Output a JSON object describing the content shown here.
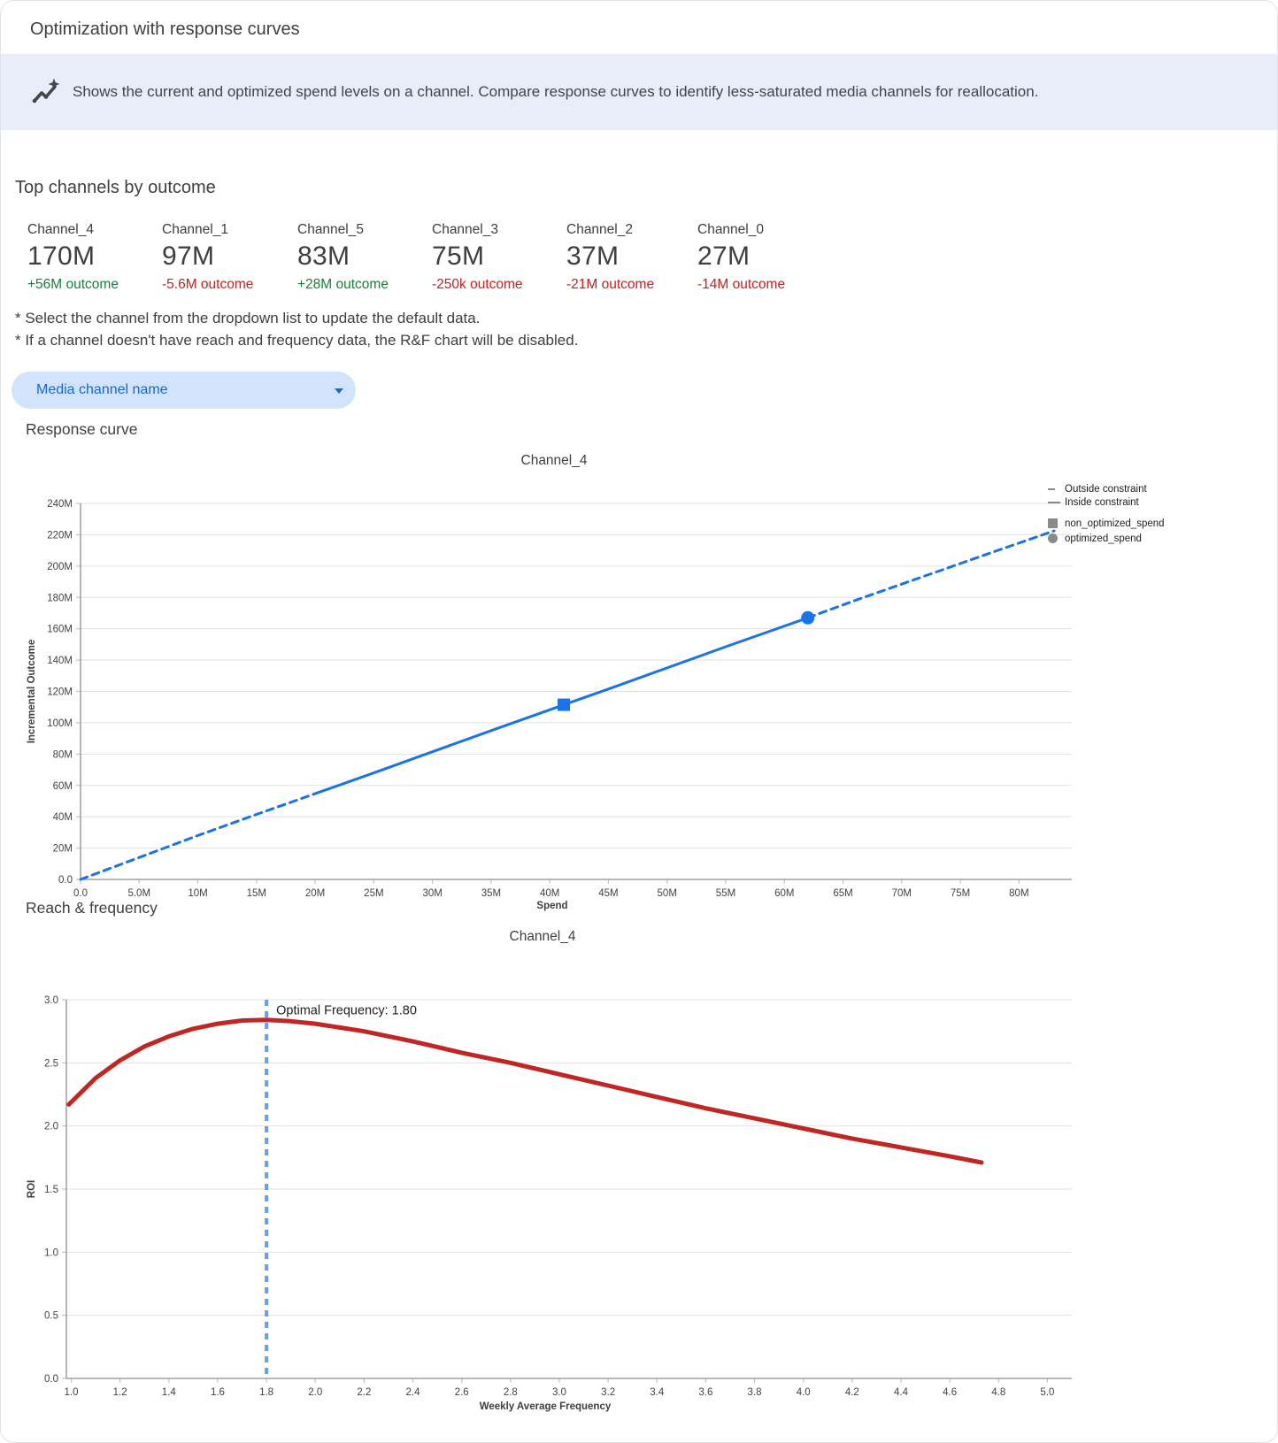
{
  "header": {
    "title": "Optimization with response curves"
  },
  "banner": {
    "icon": "insights-icon",
    "text": "Shows the current and optimized spend levels on a channel. Compare response curves to identify less-saturated media channels for reallocation."
  },
  "top_channels": {
    "heading": "Top channels by outcome",
    "items": [
      {
        "name": "Channel_4",
        "value": "170M",
        "outcome": "+56M outcome",
        "direction": "positive"
      },
      {
        "name": "Channel_1",
        "value": "97M",
        "outcome": "-5.6M outcome",
        "direction": "negative"
      },
      {
        "name": "Channel_5",
        "value": "83M",
        "outcome": "+28M outcome",
        "direction": "positive"
      },
      {
        "name": "Channel_3",
        "value": "75M",
        "outcome": "-250k outcome",
        "direction": "negative"
      },
      {
        "name": "Channel_2",
        "value": "37M",
        "outcome": "-21M outcome",
        "direction": "negative"
      },
      {
        "name": "Channel_0",
        "value": "27M",
        "outcome": "-14M outcome",
        "direction": "negative"
      }
    ]
  },
  "notes": [
    "* Select the channel from the dropdown list to update the default data.",
    "* If a channel doesn't have reach and frequency data, the R&F chart will be disabled."
  ],
  "dropdown": {
    "label": "Media channel name"
  },
  "sections": [
    {
      "heading": "Response curve"
    },
    {
      "heading": "Reach & frequency"
    }
  ],
  "colors": {
    "positive": "#188038",
    "negative": "#c5221f",
    "line_blue": "#1a73e8",
    "curve_red": "#c02622",
    "vline_blue": "#669df6",
    "dropdown_bg": "#d2e3fc",
    "dropdown_text": "#1967d2",
    "banner_bg": "#e8edf9"
  },
  "chart_data": [
    {
      "type": "line",
      "title": "Channel_4",
      "xlabel": "Spend",
      "ylabel": "Incremental Outcome",
      "xlim": [
        0,
        84.5
      ],
      "ylim": [
        0,
        240
      ],
      "grid": true,
      "legend_position": "right",
      "x_ticks": [
        {
          "v": 0,
          "label": "0.0"
        },
        {
          "v": 5,
          "label": "5.0M"
        },
        {
          "v": 10,
          "label": "10M"
        },
        {
          "v": 15,
          "label": "15M"
        },
        {
          "v": 20,
          "label": "20M"
        },
        {
          "v": 25,
          "label": "25M"
        },
        {
          "v": 30,
          "label": "30M"
        },
        {
          "v": 35,
          "label": "35M"
        },
        {
          "v": 40,
          "label": "40M"
        },
        {
          "v": 45,
          "label": "45M"
        },
        {
          "v": 50,
          "label": "50M"
        },
        {
          "v": 55,
          "label": "55M"
        },
        {
          "v": 60,
          "label": "60M"
        },
        {
          "v": 65,
          "label": "65M"
        },
        {
          "v": 70,
          "label": "70M"
        },
        {
          "v": 75,
          "label": "75M"
        },
        {
          "v": 80,
          "label": "80M"
        }
      ],
      "y_ticks": [
        {
          "v": 0,
          "label": "0.0"
        },
        {
          "v": 20,
          "label": "20M"
        },
        {
          "v": 40,
          "label": "40M"
        },
        {
          "v": 60,
          "label": "60M"
        },
        {
          "v": 80,
          "label": "80M"
        },
        {
          "v": 100,
          "label": "100M"
        },
        {
          "v": 120,
          "label": "120M"
        },
        {
          "v": 140,
          "label": "140M"
        },
        {
          "v": 160,
          "label": "160M"
        },
        {
          "v": 180,
          "label": "180M"
        },
        {
          "v": 200,
          "label": "200M"
        },
        {
          "v": 220,
          "label": "220M"
        },
        {
          "v": 240,
          "label": "240M"
        }
      ],
      "legend": [
        {
          "label": "Outside constraint",
          "marker": "dash"
        },
        {
          "label": "Inside constraint",
          "marker": "line"
        },
        {
          "label": "non_optimized_spend",
          "marker": "square"
        },
        {
          "label": "optimized_spend",
          "marker": "circle"
        }
      ],
      "series": [
        {
          "name": "outside_constraint_low",
          "style": "dashed",
          "color": "#1a73e8",
          "width": 3,
          "points": [
            [
              0,
              0
            ],
            [
              5,
              14
            ],
            [
              10,
              28
            ],
            [
              15,
              41.5
            ],
            [
              20.1,
              55
            ]
          ]
        },
        {
          "name": "inside_constraint",
          "style": "solid",
          "color": "#1a73e8",
          "width": 3,
          "points": [
            [
              20.1,
              55
            ],
            [
              25,
              68
            ],
            [
              30,
              81.5
            ],
            [
              35,
              95
            ],
            [
              41.2,
              111.5
            ],
            [
              45,
              121.5
            ],
            [
              50,
              135
            ],
            [
              55,
              148.5
            ],
            [
              62,
              167
            ]
          ]
        },
        {
          "name": "outside_constraint_high",
          "style": "dashed",
          "color": "#1a73e8",
          "width": 3,
          "points": [
            [
              62,
              167
            ],
            [
              66,
              178
            ],
            [
              70,
              188.5
            ],
            [
              74,
              199
            ],
            [
              78,
              209.5
            ],
            [
              83,
              222.5
            ]
          ]
        }
      ],
      "markers": [
        {
          "name": "non_optimized_spend",
          "shape": "square",
          "x": 41.2,
          "y": 111.5,
          "color": "#1a73e8"
        },
        {
          "name": "optimized_spend",
          "shape": "circle",
          "x": 62,
          "y": 167,
          "color": "#1a73e8"
        }
      ],
      "units": "M"
    },
    {
      "type": "line",
      "title": "Channel_4",
      "xlabel": "Weekly Average Frequency",
      "ylabel": "ROI",
      "xlim": [
        0.98,
        5.1
      ],
      "ylim": [
        0,
        3.0
      ],
      "grid": true,
      "x_ticks": [
        {
          "v": 1.0,
          "label": "1.0"
        },
        {
          "v": 1.2,
          "label": "1.2"
        },
        {
          "v": 1.4,
          "label": "1.4"
        },
        {
          "v": 1.6,
          "label": "1.6"
        },
        {
          "v": 1.8,
          "label": "1.8"
        },
        {
          "v": 2.0,
          "label": "2.0"
        },
        {
          "v": 2.2,
          "label": "2.2"
        },
        {
          "v": 2.4,
          "label": "2.4"
        },
        {
          "v": 2.6,
          "label": "2.6"
        },
        {
          "v": 2.8,
          "label": "2.8"
        },
        {
          "v": 3.0,
          "label": "3.0"
        },
        {
          "v": 3.2,
          "label": "3.2"
        },
        {
          "v": 3.4,
          "label": "3.4"
        },
        {
          "v": 3.6,
          "label": "3.6"
        },
        {
          "v": 3.8,
          "label": "3.8"
        },
        {
          "v": 4.0,
          "label": "4.0"
        },
        {
          "v": 4.2,
          "label": "4.2"
        },
        {
          "v": 4.4,
          "label": "4.4"
        },
        {
          "v": 4.6,
          "label": "4.6"
        },
        {
          "v": 4.8,
          "label": "4.8"
        },
        {
          "v": 5.0,
          "label": "5.0"
        }
      ],
      "y_ticks": [
        {
          "v": 0,
          "label": "0.0"
        },
        {
          "v": 0.5,
          "label": "0.5"
        },
        {
          "v": 1.0,
          "label": "1.0"
        },
        {
          "v": 1.5,
          "label": "1.5"
        },
        {
          "v": 2.0,
          "label": "2.0"
        },
        {
          "v": 2.5,
          "label": "2.5"
        },
        {
          "v": 3.0,
          "label": "3.0"
        }
      ],
      "vline": {
        "x": 1.8,
        "style": "dashed",
        "color": "#669df6"
      },
      "annotation": {
        "text": "Optimal Frequency: 1.80",
        "x": 1.84,
        "y": 2.92
      },
      "optimal_frequency": 1.8,
      "series": [
        {
          "name": "roi_curve",
          "style": "solid",
          "color": "#c02622",
          "width": 5,
          "points": [
            [
              0.99,
              2.17
            ],
            [
              1.1,
              2.38
            ],
            [
              1.2,
              2.52
            ],
            [
              1.3,
              2.63
            ],
            [
              1.4,
              2.71
            ],
            [
              1.5,
              2.77
            ],
            [
              1.6,
              2.81
            ],
            [
              1.7,
              2.835
            ],
            [
              1.8,
              2.84
            ],
            [
              1.9,
              2.83
            ],
            [
              2.0,
              2.81
            ],
            [
              2.2,
              2.75
            ],
            [
              2.4,
              2.67
            ],
            [
              2.6,
              2.58
            ],
            [
              2.8,
              2.5
            ],
            [
              3.0,
              2.41
            ],
            [
              3.2,
              2.32
            ],
            [
              3.4,
              2.23
            ],
            [
              3.6,
              2.14
            ],
            [
              3.8,
              2.06
            ],
            [
              4.0,
              1.98
            ],
            [
              4.2,
              1.9
            ],
            [
              4.4,
              1.83
            ],
            [
              4.6,
              1.76
            ],
            [
              4.73,
              1.71
            ]
          ]
        }
      ]
    }
  ]
}
